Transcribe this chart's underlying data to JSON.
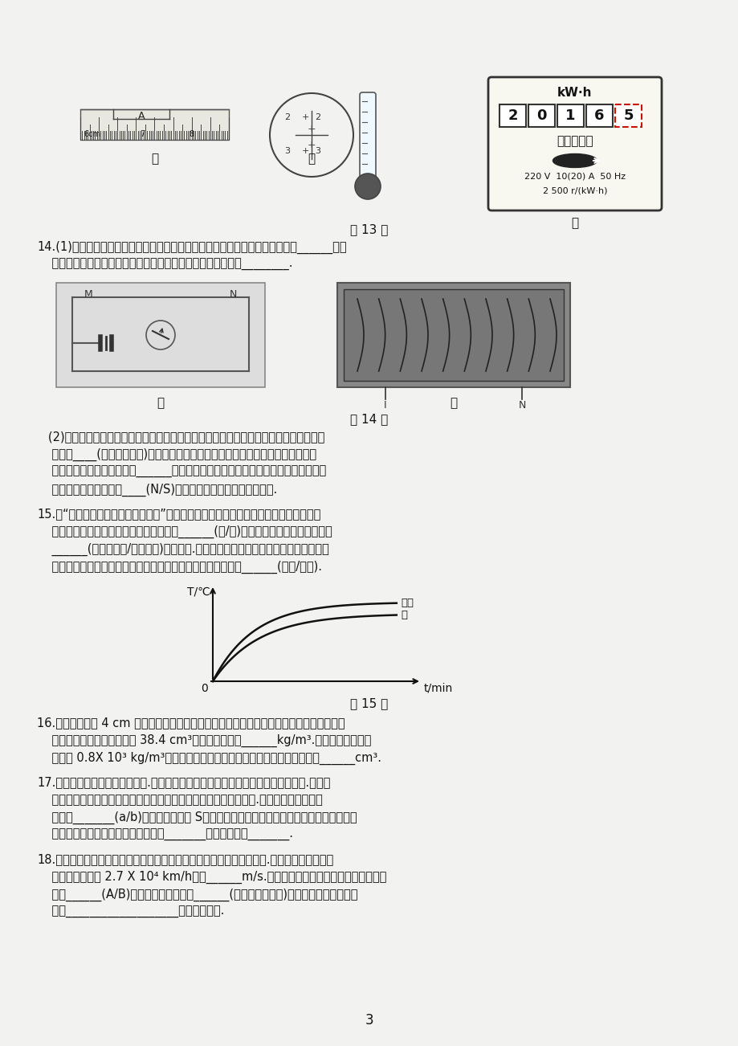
{
  "page_num": "3",
  "bg_color": "#f2f2f0",
  "text_color": "#1a1a1a",
  "title_section13": "第 13 题",
  "title_section14": "第 14 题",
  "title_section15": "第 15 题",
  "label_jia": "甲",
  "label_yi": "乙",
  "label_bing": "丙",
  "meter_digits": [
    "2",
    "0",
    "1",
    "6",
    "5"
  ],
  "meter_title": "单相电能表",
  "meter_unit": "kW·h",
  "meter_specs": "220 V  10(20) A  50 Hz",
  "meter_const": "2 500 r/(kW·h)",
  "q14_line1": "14.(1)如图甲是奥斯特实验装置，接通电路后，观察到小磁针偏转，此现象说明______；改",
  "q14_line2": "    变直导线中电流方向，小磁针的偏转方向发生了改变，说明了________.",
  "q14_line3": "   (2)探究通电螺线管外部磁场分布的实验中，在嵌入螺线管的玻璃板上均匀撒些细铁屑，",
  "q14_line4": "    通电后____(填写操作方法)玻璃板，细铁屑的排列如图乙所示，由此可以判断，通",
  "q14_line5": "    电螺线管外部的磁场分布与______周围的磁场分布是相似的，将小磁针放在通电螺线",
  "q14_line6": "    管外部，小磁针静止时____(N/S)极的指向就是该点处磁场的方向.",
  "q15_line1": "15.在“比较水和食盐水吸热升温特点”的实验后，小明绘制了如图所示的温度随时间变化",
  "q15_line2": "    的图像，由图像可知，食盐水的沩点比水______(高/低)，水和盐水吸热的多少是通过",
  "q15_line3": "    ______(温度计示数/加热时间)来反映的.实验发现，升高相同的温度时，盐水需要的",
  "q15_line4": "    时间比水要短，现在看来是因为盐水与水相比，盐水的比热容______(较大/较小).",
  "q16_line1": "16.将一个边长为 4 cm 的正方体木块轻轻放入盛满水的溢水杯中，木块漂浮在水中静止时，",
  "q16_line2": "    从溢水杯中溢出水的体积为 38.4 cm³，木块的密度为______kg/m³.若将此木块改放入",
  "q16_line3": "    密度为 0.8X 10³ kg/m³的酒精中，待木块静止时，木块露出酒精的体积为______cm³.",
  "q17_line1": "17.为避免点燃烟花造成人员伤害.小明设计了烟花定时自动点火装置，原理如图所示.装置中",
  "q17_line2": "    的点火器有电流通过时，就会自动点燃烟花，定时器控制点火时间.为完善设计方案，还",
  "q17_line3": "    需要在_______(a/b)处安装一个开关 S，断开此开关，指示灯燭灯，整个装置停止工作，",
  "q17_line4": "    点放烟花前，定时器在电路中应处于_______状态，目的是_______.",
  "q18_line1": "18.科学家计划利用空间站的激光为太空垃圾减速，使之坑入大气层烧毁.地球轨道上有一座废",
  "q18_line2": "    弃卫星，速度为 2.7 X 10⁴ km/h，合______m/s.如图所示，用大功率激光短暂照射该卫",
  "q18_line3": "    星的______(A/B)面，其表面金属直接______(填物态变化名称)成气体向外喷射而出，",
  "q18_line4": "    因为___________________可使卫星减速."
}
